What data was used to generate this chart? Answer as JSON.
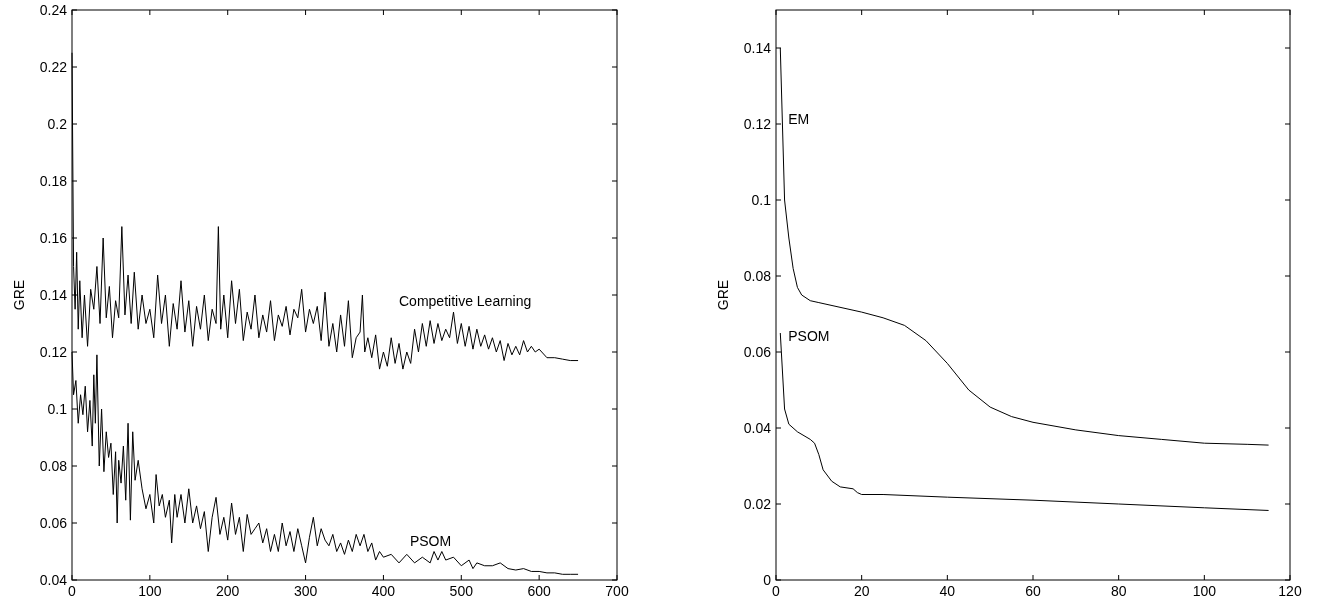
{
  "chart_data": [
    {
      "type": "line",
      "ylabel": "GRE",
      "xlim": [
        0,
        700
      ],
      "xticks": [
        0,
        100,
        200,
        300,
        400,
        500,
        600,
        700
      ],
      "ylim": [
        0.04,
        0.24
      ],
      "yticks": [
        0.04,
        0.06,
        0.08,
        0.1,
        0.12,
        0.14,
        0.16,
        0.18,
        0.2,
        0.22,
        0.24
      ],
      "series": [
        {
          "name": "Competitive Learning",
          "color": "#000000",
          "x": [
            0,
            2,
            4,
            6,
            8,
            10,
            13,
            16,
            20,
            24,
            28,
            32,
            36,
            40,
            44,
            48,
            52,
            56,
            60,
            64,
            68,
            72,
            76,
            80,
            85,
            90,
            95,
            100,
            105,
            110,
            115,
            120,
            125,
            130,
            135,
            140,
            145,
            150,
            155,
            160,
            165,
            170,
            175,
            180,
            185,
            188,
            191,
            195,
            200,
            205,
            210,
            215,
            220,
            225,
            230,
            235,
            240,
            245,
            250,
            255,
            260,
            265,
            270,
            275,
            280,
            285,
            290,
            295,
            300,
            305,
            310,
            315,
            320,
            325,
            330,
            335,
            340,
            345,
            350,
            355,
            360,
            365,
            370,
            373,
            376,
            380,
            385,
            390,
            395,
            400,
            405,
            410,
            415,
            420,
            425,
            430,
            435,
            440,
            445,
            450,
            455,
            460,
            465,
            470,
            475,
            480,
            485,
            490,
            495,
            500,
            505,
            510,
            515,
            520,
            525,
            530,
            535,
            540,
            545,
            550,
            555,
            560,
            565,
            570,
            575,
            580,
            585,
            590,
            595,
            600,
            610,
            620,
            630,
            640,
            650
          ],
          "values": [
            0.225,
            0.15,
            0.135,
            0.155,
            0.128,
            0.145,
            0.125,
            0.14,
            0.122,
            0.142,
            0.135,
            0.15,
            0.13,
            0.16,
            0.132,
            0.143,
            0.125,
            0.138,
            0.132,
            0.164,
            0.133,
            0.147,
            0.13,
            0.148,
            0.128,
            0.14,
            0.13,
            0.135,
            0.125,
            0.147,
            0.13,
            0.14,
            0.122,
            0.137,
            0.128,
            0.145,
            0.127,
            0.138,
            0.122,
            0.136,
            0.128,
            0.14,
            0.124,
            0.135,
            0.13,
            0.164,
            0.128,
            0.14,
            0.125,
            0.145,
            0.13,
            0.142,
            0.124,
            0.134,
            0.128,
            0.14,
            0.125,
            0.133,
            0.127,
            0.138,
            0.124,
            0.133,
            0.129,
            0.136,
            0.126,
            0.135,
            0.132,
            0.142,
            0.127,
            0.135,
            0.13,
            0.136,
            0.124,
            0.141,
            0.122,
            0.13,
            0.12,
            0.133,
            0.122,
            0.138,
            0.118,
            0.125,
            0.127,
            0.14,
            0.12,
            0.125,
            0.118,
            0.126,
            0.114,
            0.12,
            0.115,
            0.125,
            0.116,
            0.123,
            0.114,
            0.12,
            0.116,
            0.128,
            0.12,
            0.13,
            0.122,
            0.131,
            0.123,
            0.13,
            0.124,
            0.128,
            0.125,
            0.134,
            0.123,
            0.13,
            0.122,
            0.129,
            0.121,
            0.128,
            0.122,
            0.126,
            0.121,
            0.125,
            0.12,
            0.124,
            0.117,
            0.123,
            0.119,
            0.122,
            0.119,
            0.124,
            0.12,
            0.122,
            0.12,
            0.121,
            0.118,
            0.118,
            0.1175,
            0.117,
            0.117
          ]
        },
        {
          "name": "PSOM",
          "color": "#000000",
          "x": [
            0,
            2,
            5,
            8,
            11,
            14,
            17,
            20,
            23,
            26,
            28,
            30,
            32,
            35,
            38,
            41,
            44,
            47,
            50,
            53,
            56,
            58,
            60,
            63,
            66,
            69,
            72,
            75,
            78,
            81,
            85,
            90,
            95,
            100,
            105,
            108,
            112,
            116,
            120,
            125,
            128,
            132,
            135,
            140,
            145,
            150,
            155,
            160,
            165,
            170,
            175,
            180,
            185,
            190,
            195,
            200,
            205,
            210,
            215,
            220,
            225,
            230,
            235,
            240,
            245,
            250,
            255,
            260,
            265,
            270,
            275,
            280,
            285,
            290,
            295,
            300,
            305,
            310,
            315,
            320,
            325,
            330,
            335,
            340,
            345,
            350,
            355,
            360,
            365,
            370,
            375,
            380,
            385,
            390,
            395,
            400,
            410,
            420,
            430,
            440,
            450,
            460,
            465,
            470,
            475,
            480,
            490,
            500,
            510,
            515,
            520,
            530,
            540,
            550,
            560,
            570,
            580,
            590,
            600,
            610,
            620,
            630,
            640,
            650
          ],
          "values": [
            0.12,
            0.105,
            0.11,
            0.095,
            0.105,
            0.098,
            0.108,
            0.092,
            0.103,
            0.087,
            0.112,
            0.095,
            0.119,
            0.08,
            0.1,
            0.078,
            0.092,
            0.083,
            0.088,
            0.07,
            0.085,
            0.06,
            0.082,
            0.074,
            0.087,
            0.068,
            0.095,
            0.061,
            0.092,
            0.075,
            0.082,
            0.072,
            0.065,
            0.07,
            0.06,
            0.077,
            0.066,
            0.07,
            0.062,
            0.068,
            0.053,
            0.07,
            0.062,
            0.07,
            0.06,
            0.072,
            0.06,
            0.066,
            0.058,
            0.064,
            0.05,
            0.062,
            0.069,
            0.056,
            0.062,
            0.054,
            0.067,
            0.056,
            0.062,
            0.05,
            0.063,
            0.056,
            0.058,
            0.06,
            0.053,
            0.058,
            0.05,
            0.056,
            0.05,
            0.06,
            0.052,
            0.057,
            0.05,
            0.058,
            0.052,
            0.046,
            0.055,
            0.062,
            0.052,
            0.058,
            0.054,
            0.052,
            0.056,
            0.05,
            0.053,
            0.049,
            0.054,
            0.05,
            0.056,
            0.052,
            0.056,
            0.05,
            0.053,
            0.047,
            0.05,
            0.048,
            0.049,
            0.046,
            0.049,
            0.046,
            0.048,
            0.046,
            0.05,
            0.047,
            0.05,
            0.047,
            0.048,
            0.045,
            0.047,
            0.044,
            0.046,
            0.045,
            0.045,
            0.046,
            0.044,
            0.0435,
            0.044,
            0.043,
            0.043,
            0.0425,
            0.0425,
            0.042,
            0.042,
            0.042
          ]
        }
      ]
    },
    {
      "type": "line",
      "ylabel": "GRE",
      "xlim": [
        0,
        120
      ],
      "xticks": [
        0,
        20,
        40,
        60,
        80,
        100,
        120
      ],
      "ylim": [
        0,
        0.15
      ],
      "yticks": [
        0,
        0.02,
        0.04,
        0.06,
        0.08,
        0.1,
        0.12,
        0.14
      ],
      "series": [
        {
          "name": "EM",
          "color": "#000000",
          "x": [
            1,
            1.5,
            2,
            3,
            4,
            5,
            6,
            8,
            10,
            20,
            25,
            30,
            35,
            40,
            45,
            50,
            55,
            60,
            70,
            80,
            90,
            100,
            110,
            115
          ],
          "values": [
            0.14,
            0.12,
            0.1,
            0.09,
            0.082,
            0.077,
            0.075,
            0.0735,
            0.073,
            0.0705,
            0.069,
            0.067,
            0.063,
            0.057,
            0.05,
            0.0455,
            0.043,
            0.0415,
            0.0395,
            0.038,
            0.037,
            0.036,
            0.0357,
            0.0355
          ]
        },
        {
          "name": "PSOM",
          "color": "#000000",
          "x": [
            1,
            1.5,
            2,
            3,
            5,
            8,
            9,
            10,
            11,
            13,
            15,
            18,
            19,
            20,
            25,
            40,
            60,
            80,
            100,
            115
          ],
          "values": [
            0.065,
            0.055,
            0.045,
            0.041,
            0.039,
            0.037,
            0.036,
            0.033,
            0.029,
            0.026,
            0.0245,
            0.024,
            0.023,
            0.0225,
            0.0225,
            0.0218,
            0.021,
            0.02,
            0.019,
            0.0183
          ]
        }
      ]
    }
  ]
}
